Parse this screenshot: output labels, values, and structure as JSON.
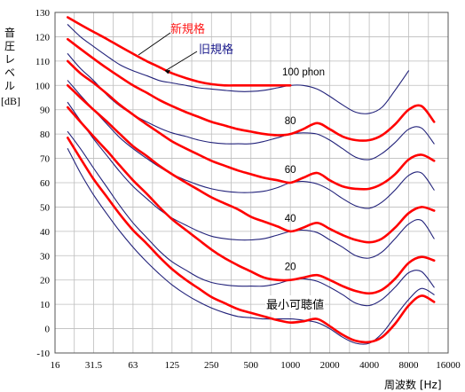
{
  "labels": {
    "ylabel_main": "音圧レベル",
    "ylabel_unit": "[dB]",
    "xlabel": "周波数 [Hz]",
    "new_standard": "新規格",
    "old_standard": "旧規格",
    "min_audible": "最小可聴値"
  },
  "colors": {
    "new_standard": "#ff0000",
    "old_standard": "#22227a",
    "grid": "#bdbdbd"
  },
  "chart_data": {
    "type": "line",
    "title": "",
    "xlabel": "周波数 [Hz]",
    "ylabel": "音圧レベル [dB]",
    "x_scale": "log",
    "xlim": [
      16,
      16000
    ],
    "ylim": [
      -10,
      130
    ],
    "x_ticks": [
      16,
      31.5,
      63,
      125,
      250,
      500,
      1000,
      2000,
      4000,
      8000,
      16000
    ],
    "x_tick_labels": [
      "16",
      "31.5",
      "63",
      "125",
      "250",
      "500",
      "1000",
      "2000",
      "4000",
      "8000",
      "16000"
    ],
    "y_ticks": [
      -10,
      0,
      10,
      20,
      30,
      40,
      50,
      60,
      70,
      80,
      90,
      100,
      110,
      120,
      130
    ],
    "grid": true,
    "curve_labels": [
      "100 phon",
      "80",
      "60",
      "40",
      "20"
    ],
    "series": [
      {
        "name": "新規格",
        "group": "new",
        "level": "100 phon",
        "x": [
          20,
          25,
          31.5,
          40,
          50,
          63,
          80,
          100,
          125,
          160,
          200,
          250,
          315,
          400,
          500,
          630,
          800,
          1000
        ],
        "y": [
          128,
          125,
          122,
          119,
          116,
          113,
          110,
          107.5,
          105,
          103,
          101.5,
          100.5,
          100,
          100,
          100,
          100,
          100,
          100
        ]
      },
      {
        "name": "新規格",
        "group": "new",
        "level": "80",
        "x": [
          20,
          25,
          31.5,
          40,
          50,
          63,
          80,
          100,
          125,
          160,
          200,
          250,
          315,
          400,
          500,
          630,
          800,
          1000,
          1250,
          1600,
          2000,
          2500,
          3150,
          4000,
          5000,
          6300,
          8000,
          10000,
          12500
        ],
        "y": [
          119,
          115,
          111,
          107,
          103.5,
          100,
          97,
          94,
          91.5,
          89,
          87,
          85,
          83.5,
          82,
          81,
          80,
          79.5,
          80,
          82,
          84.5,
          82,
          79,
          77.5,
          77.5,
          79.5,
          84,
          90,
          91.5,
          85
        ]
      },
      {
        "name": "新規格",
        "group": "new",
        "level": "60",
        "x": [
          20,
          25,
          31.5,
          40,
          50,
          63,
          80,
          100,
          125,
          160,
          200,
          250,
          315,
          400,
          500,
          630,
          800,
          1000,
          1250,
          1600,
          2000,
          2500,
          3150,
          4000,
          5000,
          6300,
          8000,
          10000,
          12500
        ],
        "y": [
          110,
          105,
          101,
          96.5,
          92,
          88,
          84,
          80.5,
          77,
          74,
          71.5,
          69,
          67,
          65,
          63.5,
          62,
          61,
          60,
          62,
          64,
          61,
          58.5,
          57.5,
          57.5,
          59.5,
          63.5,
          69.5,
          71.5,
          69
        ]
      },
      {
        "name": "新規格",
        "group": "new",
        "level": "40",
        "x": [
          20,
          25,
          31.5,
          40,
          50,
          63,
          80,
          100,
          125,
          160,
          200,
          250,
          315,
          400,
          500,
          630,
          800,
          1000,
          1250,
          1600,
          2000,
          2500,
          3150,
          4000,
          5000,
          6300,
          8000,
          10000,
          12500
        ],
        "y": [
          100,
          95,
          90,
          85,
          80,
          75,
          71,
          67,
          63.5,
          60,
          57,
          54,
          51.5,
          49,
          46,
          44,
          42,
          40,
          41.5,
          43.5,
          41,
          38.5,
          36.5,
          35.5,
          37,
          41.5,
          47.5,
          50,
          48.5
        ]
      },
      {
        "name": "新規格",
        "group": "new",
        "level": "20",
        "x": [
          20,
          25,
          31.5,
          40,
          50,
          63,
          80,
          100,
          125,
          160,
          200,
          250,
          315,
          400,
          500,
          630,
          800,
          1000,
          1250,
          1600,
          2000,
          2500,
          3150,
          4000,
          5000,
          6300,
          8000,
          10000,
          12500
        ],
        "y": [
          91,
          85,
          79,
          73,
          67,
          61,
          55.5,
          50,
          45,
          40.5,
          36.5,
          32.5,
          29,
          26,
          23.5,
          21,
          20,
          20,
          21,
          22,
          20,
          17.5,
          15.5,
          14.5,
          16,
          20.5,
          27,
          29.5,
          28
        ]
      },
      {
        "name": "新規格",
        "group": "new",
        "level": "最小可聴値",
        "x": [
          20,
          25,
          31.5,
          40,
          50,
          63,
          80,
          100,
          125,
          160,
          200,
          250,
          315,
          400,
          500,
          630,
          800,
          1000,
          1250,
          1600,
          2000,
          2500,
          3150,
          4000,
          5000,
          6300,
          8000,
          10000,
          12500
        ],
        "y": [
          78.5,
          70,
          61.5,
          54,
          47,
          40.5,
          35,
          29.5,
          24.5,
          20,
          16.5,
          13,
          10.5,
          8,
          6.5,
          5,
          3.5,
          2.5,
          3,
          4,
          1,
          -2.5,
          -5,
          -5.5,
          -3.5,
          2,
          9.5,
          13.5,
          11
        ]
      },
      {
        "name": "旧規格",
        "group": "old",
        "level": "100 phon",
        "x": [
          20,
          25,
          31.5,
          40,
          50,
          63,
          80,
          100,
          125,
          160,
          200,
          250,
          315,
          400,
          500,
          630,
          800,
          1000,
          1250,
          1600,
          2000,
          2500,
          3150,
          4000,
          5000,
          6300,
          8000
        ],
        "y": [
          125,
          120,
          116,
          112,
          108.5,
          106,
          104,
          102,
          101,
          100,
          99,
          98.5,
          98,
          97.5,
          97.5,
          98,
          99,
          100,
          100,
          98.5,
          95.5,
          92,
          89,
          88.5,
          91,
          98,
          106
        ]
      },
      {
        "name": "旧規格",
        "group": "old",
        "level": "80",
        "x": [
          20,
          25,
          31.5,
          40,
          50,
          63,
          80,
          100,
          125,
          160,
          200,
          250,
          315,
          400,
          500,
          630,
          800,
          1000,
          1250,
          1600,
          2000,
          2500,
          3150,
          4000,
          5000,
          6300,
          8000,
          10000,
          12500
        ],
        "y": [
          113,
          107,
          102,
          96,
          91.5,
          88,
          85,
          82.5,
          80.5,
          79,
          77.5,
          76.5,
          76,
          76,
          76,
          77,
          78.5,
          80,
          80.5,
          80,
          77.5,
          74,
          70.5,
          69.5,
          72,
          76.5,
          82,
          82.5,
          76
        ]
      },
      {
        "name": "旧規格",
        "group": "old",
        "level": "60",
        "x": [
          20,
          25,
          31.5,
          40,
          50,
          63,
          80,
          100,
          125,
          160,
          200,
          250,
          315,
          400,
          500,
          630,
          800,
          1000,
          1250,
          1600,
          2000,
          2500,
          3150,
          4000,
          5000,
          6300,
          8000,
          10000,
          12500
        ],
        "y": [
          102,
          96,
          90,
          84,
          78.5,
          74,
          70,
          66.5,
          63.5,
          61,
          59,
          57.5,
          56.5,
          56,
          56,
          56.5,
          58,
          60,
          60.5,
          59.5,
          57,
          53.5,
          50.5,
          49.5,
          52,
          57,
          63,
          64,
          57
        ]
      },
      {
        "name": "旧規格",
        "group": "old",
        "level": "40",
        "x": [
          20,
          25,
          31.5,
          40,
          50,
          63,
          80,
          100,
          125,
          160,
          200,
          250,
          315,
          400,
          500,
          630,
          800,
          1000,
          1250,
          1600,
          2000,
          2500,
          3150,
          4000,
          5000,
          6300,
          8000,
          10000,
          12500
        ],
        "y": [
          93,
          85.5,
          78,
          71,
          64.5,
          58.5,
          53.5,
          49,
          45.5,
          42.5,
          40,
          38,
          37,
          36.5,
          36.5,
          37,
          38.5,
          40,
          40.5,
          39.5,
          36.5,
          33.5,
          30,
          29,
          31.5,
          37,
          43,
          44.5,
          37
        ]
      },
      {
        "name": "旧規格",
        "group": "old",
        "level": "20",
        "x": [
          20,
          25,
          31.5,
          40,
          50,
          63,
          80,
          100,
          125,
          160,
          200,
          250,
          315,
          400,
          500,
          630,
          800,
          1000,
          1250,
          1600,
          2000,
          2500,
          3150,
          4000,
          5000,
          6300,
          8000,
          10000,
          12500
        ],
        "y": [
          81,
          74,
          66,
          58,
          50.5,
          43.5,
          37.5,
          32,
          27.5,
          24,
          21,
          19,
          18,
          17.5,
          17.5,
          17.5,
          18.5,
          20,
          20.5,
          19.5,
          17,
          14,
          10.5,
          9.5,
          12,
          17,
          23,
          23.5,
          17
        ]
      },
      {
        "name": "旧規格",
        "group": "old",
        "level": "最小可聴値",
        "x": [
          20,
          25,
          31.5,
          40,
          50,
          63,
          80,
          100,
          125,
          160,
          200,
          250,
          315,
          400,
          500,
          630,
          800,
          1000,
          1250,
          1600,
          2000,
          2500,
          3150,
          4000,
          5000,
          6300,
          8000,
          10000,
          12500
        ],
        "y": [
          74,
          64,
          55,
          47,
          40,
          33.5,
          27.5,
          22.5,
          18,
          14,
          11,
          8.5,
          6.5,
          5,
          4.5,
          4,
          4,
          4,
          3.5,
          2.5,
          0,
          -3.5,
          -6,
          -6,
          -2,
          5,
          12,
          16.5,
          14
        ]
      }
    ]
  }
}
